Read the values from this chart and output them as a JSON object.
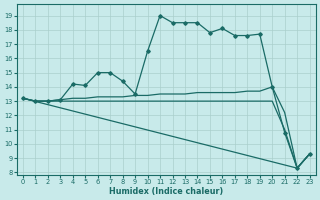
{
  "xlabel": "Humidex (Indice chaleur)",
  "bg_color": "#c8eaea",
  "line_color": "#1a6b66",
  "grid_color": "#aacfcc",
  "xlim": [
    -0.5,
    23.5
  ],
  "ylim": [
    7.8,
    19.8
  ],
  "yticks": [
    8,
    9,
    10,
    11,
    12,
    13,
    14,
    15,
    16,
    17,
    18,
    19
  ],
  "xticks": [
    0,
    1,
    2,
    3,
    4,
    5,
    6,
    7,
    8,
    9,
    10,
    11,
    12,
    13,
    14,
    15,
    16,
    17,
    18,
    19,
    20,
    21,
    22,
    23
  ],
  "curve_main_x": [
    0,
    1,
    2,
    3,
    4,
    5,
    6,
    7,
    8,
    9,
    10,
    11,
    12,
    13,
    14,
    15,
    16,
    17,
    18,
    19,
    20,
    21,
    22,
    23
  ],
  "curve_main_y": [
    13.2,
    13.0,
    13.0,
    13.1,
    14.2,
    14.1,
    15.0,
    15.0,
    14.4,
    13.5,
    16.5,
    19.0,
    18.5,
    18.5,
    18.5,
    17.8,
    18.1,
    17.6,
    17.6,
    17.7,
    14.0,
    10.8,
    8.3,
    9.3
  ],
  "curve2_x": [
    0,
    1,
    2,
    3,
    4,
    5,
    6,
    7,
    8,
    9,
    10,
    11,
    12,
    13,
    14,
    15,
    16,
    17,
    18,
    19,
    20,
    21,
    22,
    23
  ],
  "curve2_y": [
    13.2,
    13.0,
    13.0,
    13.1,
    13.2,
    13.2,
    13.3,
    13.3,
    13.3,
    13.4,
    13.4,
    13.5,
    13.5,
    13.5,
    13.6,
    13.6,
    13.6,
    13.6,
    13.7,
    13.7,
    14.0,
    12.2,
    8.3,
    9.3
  ],
  "curve3_x": [
    0,
    1,
    2,
    3,
    4,
    5,
    6,
    7,
    8,
    9,
    10,
    11,
    12,
    13,
    14,
    15,
    16,
    17,
    18,
    19,
    20,
    21,
    22,
    23
  ],
  "curve3_y": [
    13.2,
    13.0,
    13.0,
    13.0,
    13.0,
    13.0,
    13.0,
    13.0,
    13.0,
    13.0,
    13.0,
    13.0,
    13.0,
    13.0,
    13.0,
    13.0,
    13.0,
    13.0,
    13.0,
    13.0,
    13.0,
    11.0,
    8.3,
    9.3
  ],
  "curve4_x": [
    0,
    22,
    23
  ],
  "curve4_y": [
    13.2,
    8.3,
    9.3
  ]
}
